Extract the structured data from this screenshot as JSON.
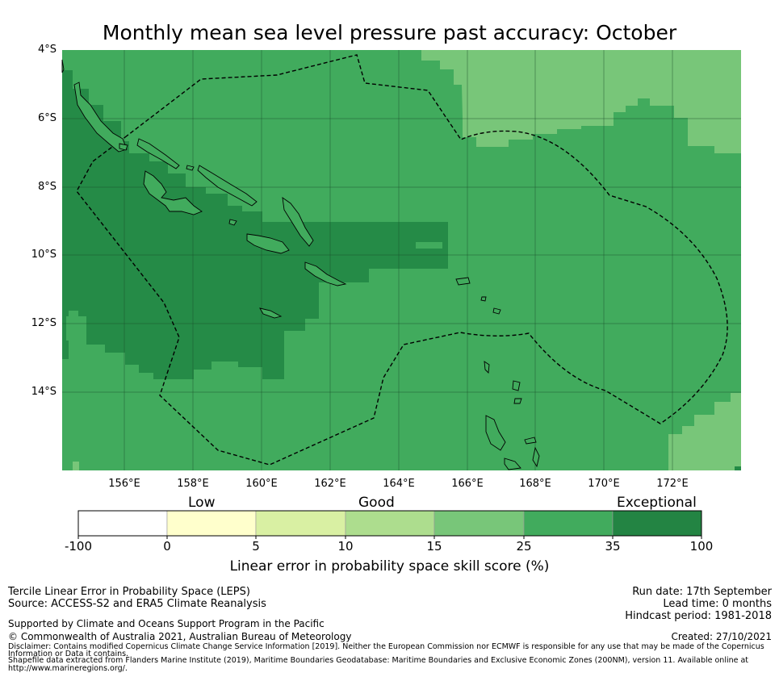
{
  "title": "Monthly mean sea level pressure past accuracy: October",
  "map": {
    "colors": {
      "exceptional": "#258b47",
      "band_25_35": "#41ab5d",
      "band_15_25": "#78c679",
      "coastline": "#000000",
      "eez_boundary": "#000000",
      "gridline": "#1a4d2a"
    },
    "lat_labels": [
      "4°S",
      "6°S",
      "8°S",
      "10°S",
      "12°S",
      "14°S"
    ],
    "lon_labels": [
      "156°E",
      "158°E",
      "160°E",
      "162°E",
      "164°E",
      "166°E",
      "168°E",
      "170°E",
      "172°E"
    ]
  },
  "colorbar": {
    "categories": [
      "Low",
      "Good",
      "Exceptional"
    ],
    "ticks": [
      "-100",
      "0",
      "5",
      "10",
      "15",
      "25",
      "35",
      "100"
    ],
    "colors": [
      "#ffffff",
      "#ffffcc",
      "#d9f0a3",
      "#addd8e",
      "#78c679",
      "#41ab5d",
      "#238443"
    ],
    "axis_label": "Linear error in probability space skill score (%)"
  },
  "footer": {
    "method": "Tercile Linear Error in Probability Space (LEPS)",
    "source": "Source: ACCESS-S2 and ERA5 Climate Reanalysis",
    "run_date": "Run date: 17th September",
    "lead_time": "Lead time: 0 months",
    "hindcast": "Hindcast period: 1981-2018",
    "support": "Supported by Climate and Oceans Support Program in the Pacific",
    "copyright": "© Commonwealth of Australia 2021, Australian Bureau of Meteorology",
    "created": "Created: 27/10/2021",
    "disclaimer_1": "Disclaimer: Contains modified Copernicus Climate Change Service Information [2019]. Neither the European Commission nor ECMWF is responsible for any use that may be made of the Copernicus",
    "disclaimer_2": "Information or Data it contains.",
    "shapefile_1": "Shapefile data extracted from Flanders Marine Institute (2019), Maritime Boundaries Geodatabase: Maritime Boundaries and Exclusive Economic Zones (200NM), version 11. Available online at",
    "shapefile_2": "http://www.marineregions.org/."
  }
}
